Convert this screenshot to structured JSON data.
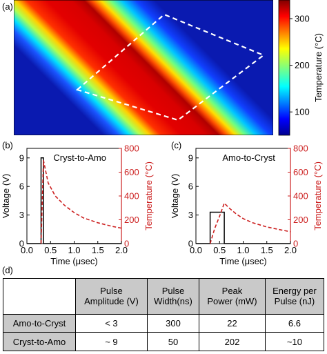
{
  "panels": {
    "a": "(a)",
    "b": "(b)",
    "c": "(c)",
    "d": "(d)"
  },
  "colors": {
    "voltage_line": "#000000",
    "temperature_line": "#cc1f1f",
    "temperature_axis": "#cc1f1f",
    "roi_box": "#ffffff",
    "header_fill": "#c9c9c9"
  },
  "chart_data": [
    {
      "type": "heatmap",
      "panel": "a",
      "colorbar": {
        "label": "Temperature (°C)",
        "ticks": [
          100,
          200,
          300
        ],
        "range": [
          50,
          340
        ],
        "colormap": "jet"
      },
      "band": {
        "description_values": "diagonal high-temperature stripe",
        "peak_value": 340,
        "background_value": 60
      }
    },
    {
      "type": "line",
      "panel": "b",
      "title": "Cryst-to-Amo",
      "xlabel": "Time (μsec)",
      "ylabel_left": "Voltage (V)",
      "ylabel_right": "Temperature (°C)",
      "xlim": [
        0.0,
        2.0
      ],
      "ylim_left": [
        0,
        10
      ],
      "ylim_right": [
        0,
        800
      ],
      "xticks": [
        "0.0",
        "0.5",
        "1.0",
        "1.5",
        "2.0"
      ],
      "yticks_left": [
        "0",
        "3",
        "6",
        "9"
      ],
      "yticks_right": [
        "0",
        "200",
        "400",
        "600",
        "800"
      ],
      "series": [
        {
          "axis": "left",
          "style": "solid",
          "x": [
            0.0,
            0.3,
            0.3,
            0.35,
            0.35,
            2.0
          ],
          "y": [
            0,
            0,
            9,
            9,
            0,
            0
          ]
        },
        {
          "axis": "right",
          "style": "dashed",
          "x": [
            0.3,
            0.35,
            0.45,
            0.6,
            0.8,
            1.0,
            1.2,
            1.5,
            1.8,
            2.0
          ],
          "y": [
            0,
            700,
            510,
            400,
            320,
            260,
            215,
            175,
            145,
            130
          ]
        }
      ]
    },
    {
      "type": "line",
      "panel": "c",
      "title": "Amo-to-Cryst",
      "xlabel": "Time (μsec)",
      "ylabel_left": "Voltage (V)",
      "ylabel_right": "Temperature (°C)",
      "xlim": [
        0.0,
        2.0
      ],
      "ylim_left": [
        0,
        10
      ],
      "ylim_right": [
        0,
        800
      ],
      "xticks": [
        "0.0",
        "0.5",
        "1.0",
        "1.5",
        "2.0"
      ],
      "yticks_left": [
        "0",
        "3",
        "6",
        "9"
      ],
      "yticks_right": [
        "0",
        "200",
        "400",
        "600",
        "800"
      ],
      "series": [
        {
          "axis": "left",
          "style": "solid",
          "x": [
            0.0,
            0.3,
            0.3,
            0.6,
            0.6,
            2.0
          ],
          "y": [
            0,
            0,
            3.3,
            3.3,
            0,
            0
          ]
        },
        {
          "axis": "right",
          "style": "dashed",
          "x": [
            0.3,
            0.4,
            0.5,
            0.6,
            0.7,
            0.85,
            1.0,
            1.2,
            1.5,
            1.8,
            2.0
          ],
          "y": [
            0,
            130,
            230,
            340,
            300,
            250,
            210,
            175,
            140,
            115,
            100
          ]
        }
      ]
    },
    {
      "type": "table",
      "panel": "d",
      "columns": [
        "Pulse Amplitude (V)",
        "Pulse Width(ns)",
        "Peak Power (mW)",
        "Energy per Pulse (nJ)"
      ],
      "rows": [
        {
          "label": "Amo-to-Cryst",
          "cells": [
            "< 3",
            "300",
            "22",
            "6.6"
          ]
        },
        {
          "label": "Cryst-to-Amo",
          "cells": [
            "~ 9",
            "50",
            "202",
            "~10"
          ]
        }
      ]
    }
  ],
  "table": {
    "header": [
      {
        "line1": "Pulse",
        "line2": "Amplitude (V)"
      },
      {
        "line1": "Pulse",
        "line2": "Width(ns)"
      },
      {
        "line1": "Peak",
        "line2": "Power (mW)"
      },
      {
        "line1": "Energy per",
        "line2": "Pulse (nJ)"
      }
    ],
    "rows": [
      {
        "label": "Amo-to-Cryst",
        "c1": "< 3",
        "c2": "300",
        "c3": "22",
        "c4": "6.6"
      },
      {
        "label": "Cryst-to-Amo",
        "c1": "~ 9",
        "c2": "50",
        "c3": "202",
        "c4": "~10"
      }
    ]
  }
}
